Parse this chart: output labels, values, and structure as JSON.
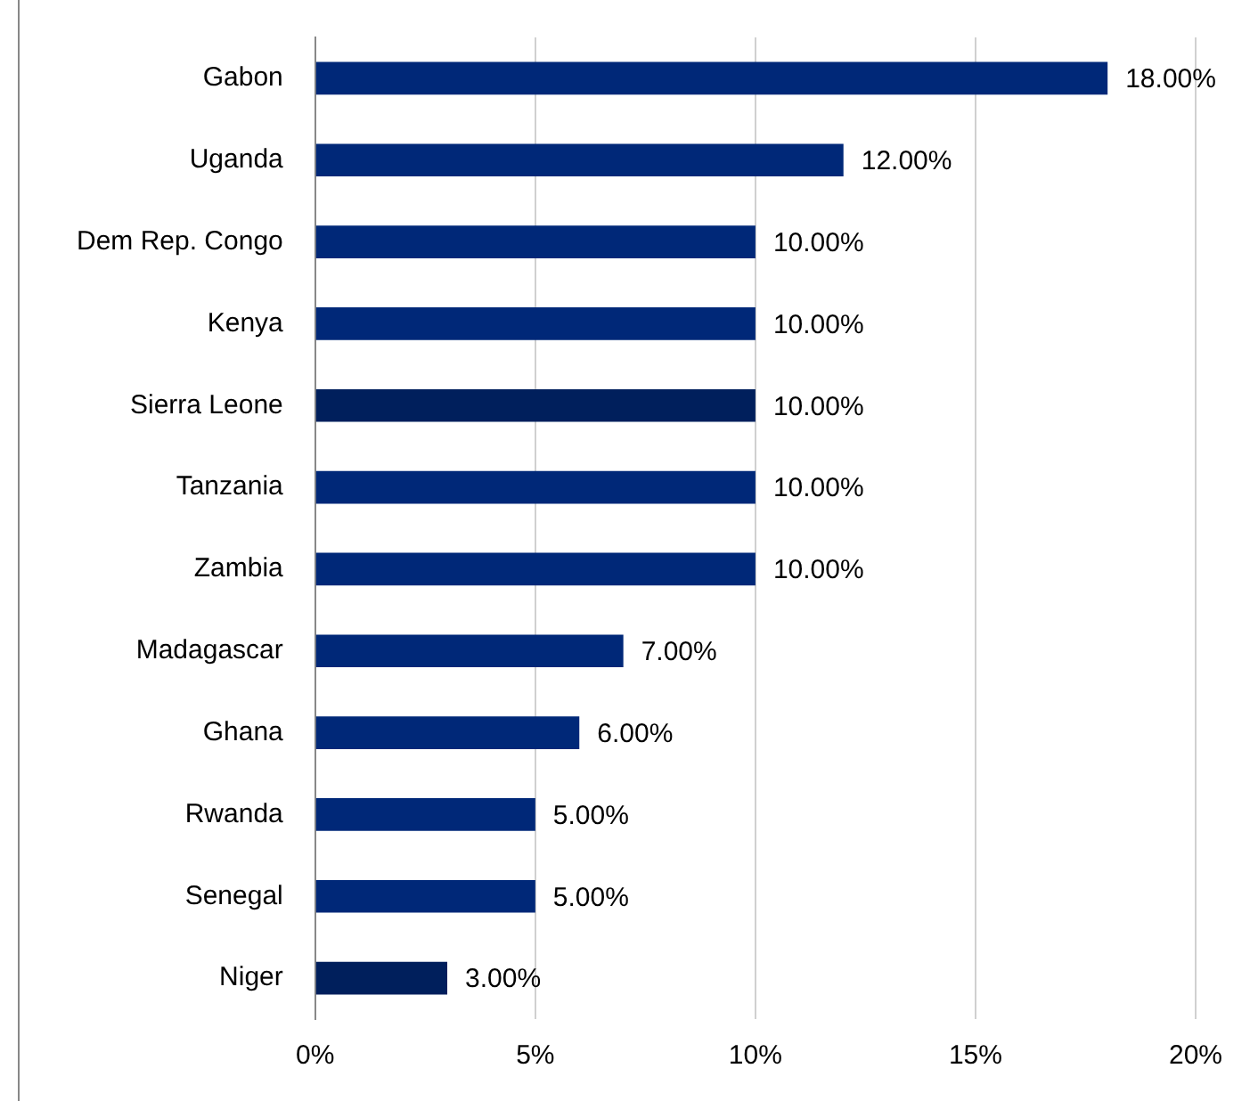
{
  "chart_data": {
    "type": "bar",
    "orientation": "horizontal",
    "categories": [
      "Gabon",
      "Uganda",
      "Dem Rep. Congo",
      "Kenya",
      "Sierra Leone",
      "Tanzania",
      "Zambia",
      "Madagascar",
      "Ghana",
      "Rwanda",
      "Senegal",
      "Niger"
    ],
    "values": [
      18,
      12,
      10,
      10,
      10,
      10,
      10,
      7,
      6,
      5,
      5,
      3
    ],
    "colors": [
      "#002878",
      "#002878",
      "#002878",
      "#002878",
      "#001f5c",
      "#002878",
      "#002878",
      "#002878",
      "#002878",
      "#002878",
      "#002878",
      "#001f5c"
    ],
    "value_labels": [
      "18.00%",
      "12.00%",
      "10.00%",
      "10.00%",
      "10.00%",
      "10.00%",
      "10.00%",
      "7.00%",
      "6.00%",
      "5.00%",
      "5.00%",
      "3.00%"
    ],
    "xlim": [
      0,
      20
    ],
    "xticks": [
      {
        "value": 0,
        "label": "0%"
      },
      {
        "value": 5,
        "label": "5%"
      },
      {
        "value": 10,
        "label": "10%"
      },
      {
        "value": 15,
        "label": "15%"
      },
      {
        "value": 20,
        "label": "20%"
      }
    ],
    "grid": "x",
    "legend": false
  }
}
